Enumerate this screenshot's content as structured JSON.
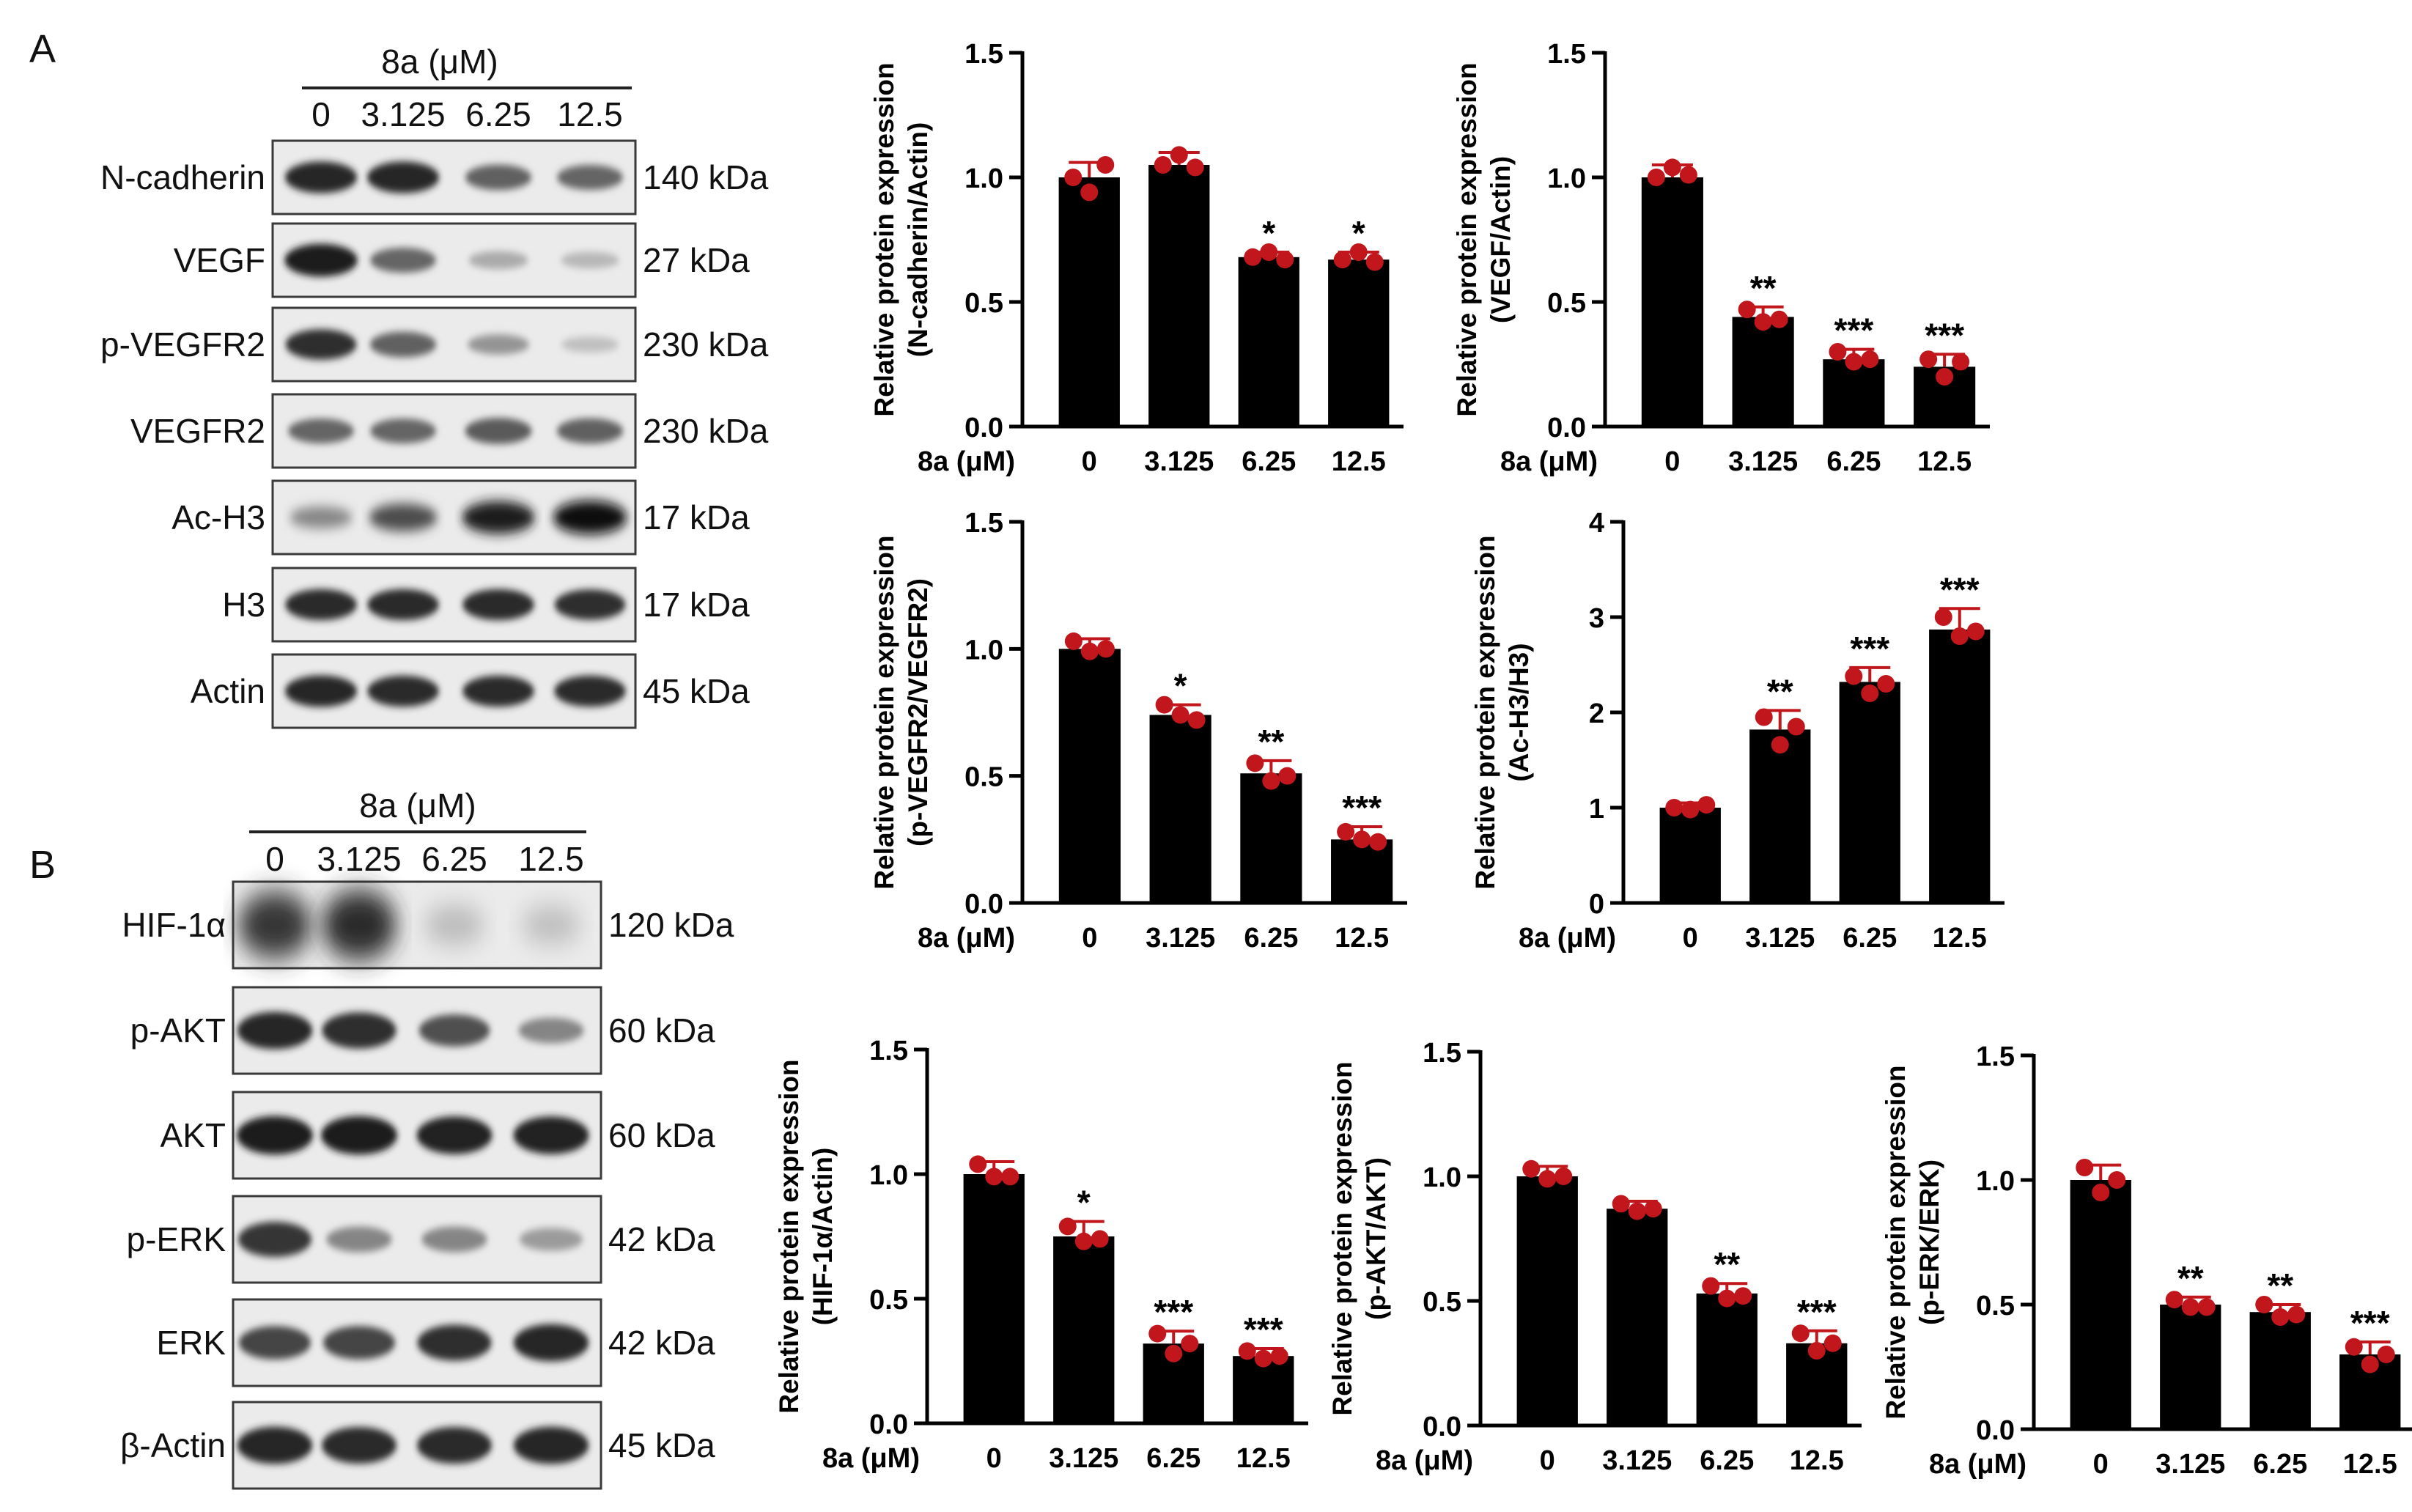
{
  "panels": {
    "a": "A",
    "b": "B"
  },
  "blot_a": {
    "header": "8a (μM)",
    "lanes": [
      "0",
      "3.125",
      "6.25",
      "12.5"
    ],
    "rows": [
      {
        "label": "N-cadherin",
        "kda": "140 kDa",
        "intensity": [
          0.9,
          0.9,
          0.62,
          0.6
        ],
        "blur": 0.25
      },
      {
        "label": "VEGF",
        "kda": "27 kDa",
        "intensity": [
          0.95,
          0.6,
          0.28,
          0.22
        ],
        "blur": 0.3
      },
      {
        "label": "p-VEGFR2",
        "kda": "230 kDa",
        "intensity": [
          0.85,
          0.62,
          0.38,
          0.18
        ],
        "blur": 0.3
      },
      {
        "label": "VEGFR2",
        "kda": "230 kDa",
        "intensity": [
          0.6,
          0.6,
          0.65,
          0.62
        ],
        "blur": 0.3
      },
      {
        "label": "Ac-H3",
        "kda": "17 kDa",
        "intensity": [
          0.45,
          0.72,
          0.95,
          1.0
        ],
        "blur": 0.45
      },
      {
        "label": "H3",
        "kda": "17 kDa",
        "intensity": [
          0.88,
          0.88,
          0.88,
          0.85
        ],
        "blur": 0.25
      },
      {
        "label": "Actin",
        "kda": "45 kDa",
        "intensity": [
          0.9,
          0.88,
          0.88,
          0.88
        ],
        "blur": 0.25
      }
    ]
  },
  "blot_b": {
    "header": "8a (μM)",
    "lanes": [
      "0",
      "3.125",
      "6.25",
      "12.5"
    ],
    "rows": [
      {
        "label": "HIF-1α",
        "kda": "120 kDa",
        "intensity": [
          0.82,
          0.88,
          0.22,
          0.2
        ],
        "blur": 0.9
      },
      {
        "label": "p-AKT",
        "kda": "60 kDa",
        "intensity": [
          0.9,
          0.86,
          0.7,
          0.45
        ],
        "blur": 0.25
      },
      {
        "label": "AKT",
        "kda": "60 kDa",
        "intensity": [
          0.95,
          0.95,
          0.92,
          0.92
        ],
        "blur": 0.25
      },
      {
        "label": "p-ERK",
        "kda": "42 kDa",
        "intensity": [
          0.82,
          0.45,
          0.45,
          0.35
        ],
        "blur": 0.3
      },
      {
        "label": "ERK",
        "kda": "42 kDa",
        "intensity": [
          0.75,
          0.75,
          0.85,
          0.9
        ],
        "blur": 0.3
      },
      {
        "label": "β-Actin",
        "kda": "45 kDa",
        "intensity": [
          0.9,
          0.88,
          0.88,
          0.9
        ],
        "blur": 0.25
      }
    ]
  },
  "chart_data": [
    {
      "type": "bar",
      "categories": [
        "0",
        "3.125",
        "6.25",
        "12.5"
      ],
      "values": [
        1.0,
        1.05,
        0.68,
        0.67
      ],
      "errors": [
        0.06,
        0.05,
        0.02,
        0.03
      ],
      "points": [
        [
          1.0,
          0.94,
          1.05
        ],
        [
          1.05,
          1.09,
          1.04
        ],
        [
          0.68,
          0.7,
          0.67
        ],
        [
          0.67,
          0.7,
          0.66
        ]
      ],
      "significance": [
        "",
        "",
        "*",
        "*"
      ],
      "ylabel": "Relative protein expression",
      "ylabel2": "(N-cadherin/Actin)",
      "xlabel": "8a (μM)",
      "ylim": [
        0,
        1.5
      ],
      "yticks": [
        "0.0",
        "0.5",
        "1.0",
        "1.5"
      ],
      "dot_color": "#c0161c",
      "bar_color": "#000000"
    },
    {
      "type": "bar",
      "categories": [
        "0",
        "3.125",
        "6.25",
        "12.5"
      ],
      "values": [
        1.0,
        0.44,
        0.27,
        0.24
      ],
      "errors": [
        0.05,
        0.04,
        0.04,
        0.05
      ],
      "points": [
        [
          1.0,
          1.04,
          1.01
        ],
        [
          0.47,
          0.42,
          0.43
        ],
        [
          0.3,
          0.26,
          0.27
        ],
        [
          0.27,
          0.2,
          0.26
        ]
      ],
      "significance": [
        "",
        "**",
        "***",
        "***"
      ],
      "ylabel": "Relative protein expression",
      "ylabel2": "(VEGF/Actin)",
      "xlabel": "8a (μM)",
      "ylim": [
        0,
        1.5
      ],
      "yticks": [
        "0.0",
        "0.5",
        "1.0",
        "1.5"
      ],
      "dot_color": "#c0161c",
      "bar_color": "#000000"
    },
    {
      "type": "bar",
      "categories": [
        "0",
        "3.125",
        "6.25",
        "12.5"
      ],
      "values": [
        1.0,
        0.74,
        0.51,
        0.25
      ],
      "errors": [
        0.04,
        0.04,
        0.05,
        0.05
      ],
      "points": [
        [
          1.03,
          0.99,
          1.0
        ],
        [
          0.78,
          0.74,
          0.72
        ],
        [
          0.55,
          0.48,
          0.5
        ],
        [
          0.28,
          0.25,
          0.24
        ]
      ],
      "significance": [
        "",
        "*",
        "**",
        "***"
      ],
      "ylabel": "Relative protein expression",
      "ylabel2": "(p-VEGFR2/VEGFR2)",
      "xlabel": "8a (μM)",
      "ylim": [
        0,
        1.5
      ],
      "yticks": [
        "0.0",
        "0.5",
        "1.0",
        "1.5"
      ],
      "dot_color": "#c0161c",
      "bar_color": "#000000"
    },
    {
      "type": "bar",
      "categories": [
        "0",
        "3.125",
        "6.25",
        "12.5"
      ],
      "values": [
        1.0,
        1.82,
        2.32,
        2.87
      ],
      "errors": [
        0.05,
        0.2,
        0.15,
        0.22
      ],
      "points": [
        [
          1.0,
          0.98,
          1.03
        ],
        [
          1.95,
          1.66,
          1.85
        ],
        [
          2.38,
          2.2,
          2.3
        ],
        [
          3.0,
          2.8,
          2.85
        ]
      ],
      "significance": [
        "",
        "**",
        "***",
        "***"
      ],
      "ylabel": "Relative protein expression",
      "ylabel2": "(Ac-H3/H3)",
      "xlabel": "8a (μM)",
      "ylim": [
        0,
        4
      ],
      "yticks": [
        "0",
        "1",
        "2",
        "3",
        "4"
      ],
      "dot_color": "#c0161c",
      "bar_color": "#000000"
    },
    {
      "type": "bar",
      "categories": [
        "0",
        "3.125",
        "6.25",
        "12.5"
      ],
      "values": [
        1.0,
        0.75,
        0.32,
        0.27
      ],
      "errors": [
        0.05,
        0.06,
        0.05,
        0.03
      ],
      "points": [
        [
          1.04,
          0.99,
          0.99
        ],
        [
          0.79,
          0.73,
          0.74
        ],
        [
          0.36,
          0.28,
          0.32
        ],
        [
          0.29,
          0.26,
          0.27
        ]
      ],
      "significance": [
        "",
        "*",
        "***",
        "***"
      ],
      "ylabel": "Relative protein expression",
      "ylabel2": "(HIF-1α/Actin)",
      "xlabel": "8a (μM)",
      "ylim": [
        0,
        1.5
      ],
      "yticks": [
        "0.0",
        "0.5",
        "1.0",
        "1.5"
      ],
      "dot_color": "#c0161c",
      "bar_color": "#000000"
    },
    {
      "type": "bar",
      "categories": [
        "0",
        "3.125",
        "6.25",
        "12.5"
      ],
      "values": [
        1.0,
        0.87,
        0.53,
        0.33
      ],
      "errors": [
        0.04,
        0.03,
        0.04,
        0.05
      ],
      "points": [
        [
          1.03,
          0.99,
          1.0
        ],
        [
          0.89,
          0.86,
          0.87
        ],
        [
          0.56,
          0.51,
          0.52
        ],
        [
          0.37,
          0.3,
          0.33
        ]
      ],
      "significance": [
        "",
        "",
        "**",
        "***"
      ],
      "ylabel": "Relative protein expression",
      "ylabel2": "(p-AKT/AKT)",
      "xlabel": "8a (μM)",
      "ylim": [
        0,
        1.5
      ],
      "yticks": [
        "0.0",
        "0.5",
        "1.0",
        "1.5"
      ],
      "dot_color": "#c0161c",
      "bar_color": "#000000"
    },
    {
      "type": "bar",
      "categories": [
        "0",
        "3.125",
        "6.25",
        "12.5"
      ],
      "values": [
        1.0,
        0.5,
        0.47,
        0.3
      ],
      "errors": [
        0.06,
        0.03,
        0.03,
        0.05
      ],
      "points": [
        [
          1.05,
          0.95,
          1.0
        ],
        [
          0.52,
          0.49,
          0.49
        ],
        [
          0.5,
          0.45,
          0.46
        ],
        [
          0.33,
          0.26,
          0.3
        ]
      ],
      "significance": [
        "",
        "**",
        "**",
        "***"
      ],
      "ylabel": "Relative protein expression",
      "ylabel2": "(p-ERK/ERK)",
      "xlabel": "8a (μM)",
      "ylim": [
        0,
        1.5
      ],
      "yticks": [
        "0.0",
        "0.5",
        "1.0",
        "1.5"
      ],
      "dot_color": "#c0161c",
      "bar_color": "#000000"
    }
  ]
}
